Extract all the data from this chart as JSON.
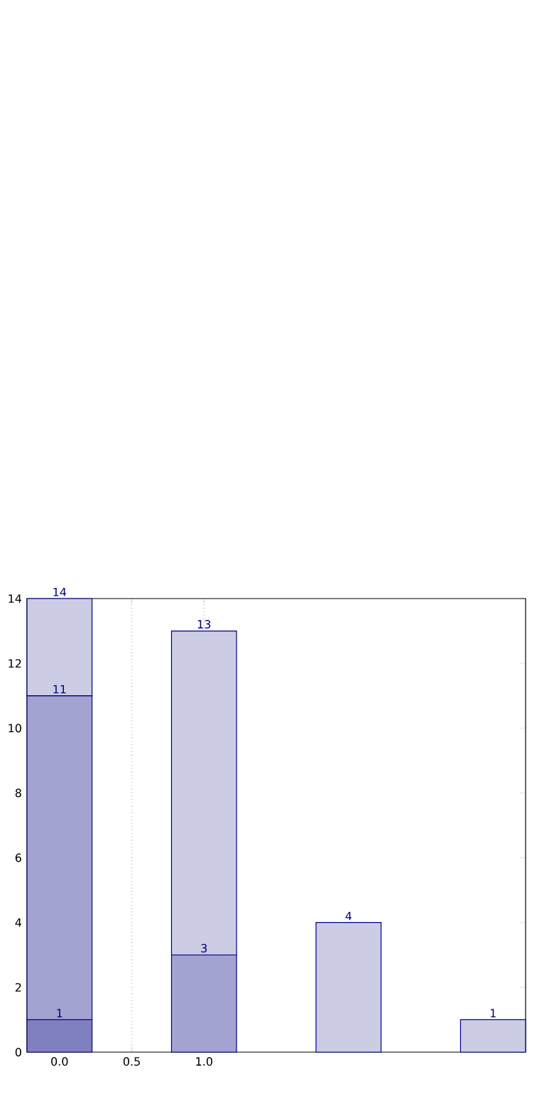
{
  "chart_data": {
    "type": "bar",
    "stacked": true,
    "x": [
      0,
      1,
      2,
      3
    ],
    "xlim": [
      -0.225,
      3.225
    ],
    "ylim": [
      0,
      14
    ],
    "xticks": [
      {
        "value": 0,
        "label": "0.0"
      },
      {
        "value": 0.5,
        "label": "0.5"
      },
      {
        "value": 1,
        "label": "1.0"
      }
    ],
    "yticks": [
      0,
      2,
      4,
      6,
      8,
      10,
      12,
      14
    ],
    "grid": "x",
    "series": [
      {
        "color": "#8080c0",
        "values": [
          1,
          null,
          null,
          null
        ]
      },
      {
        "color": "#a3a3d1",
        "values": [
          10,
          3,
          null,
          null
        ]
      },
      {
        "color": "#ccccE5",
        "values": [
          3,
          10,
          4,
          1
        ]
      }
    ],
    "annotations": [
      {
        "text": "1",
        "x": 0,
        "y": 1
      },
      {
        "text": "11",
        "x": 0,
        "y": 11
      },
      {
        "text": "14",
        "x": 0,
        "y": 14
      },
      {
        "text": "3",
        "x": 1,
        "y": 3
      },
      {
        "text": "13",
        "x": 1,
        "y": 13
      },
      {
        "text": "4",
        "x": 2,
        "y": 4
      },
      {
        "text": "1",
        "x": 3,
        "y": 1
      }
    ]
  }
}
